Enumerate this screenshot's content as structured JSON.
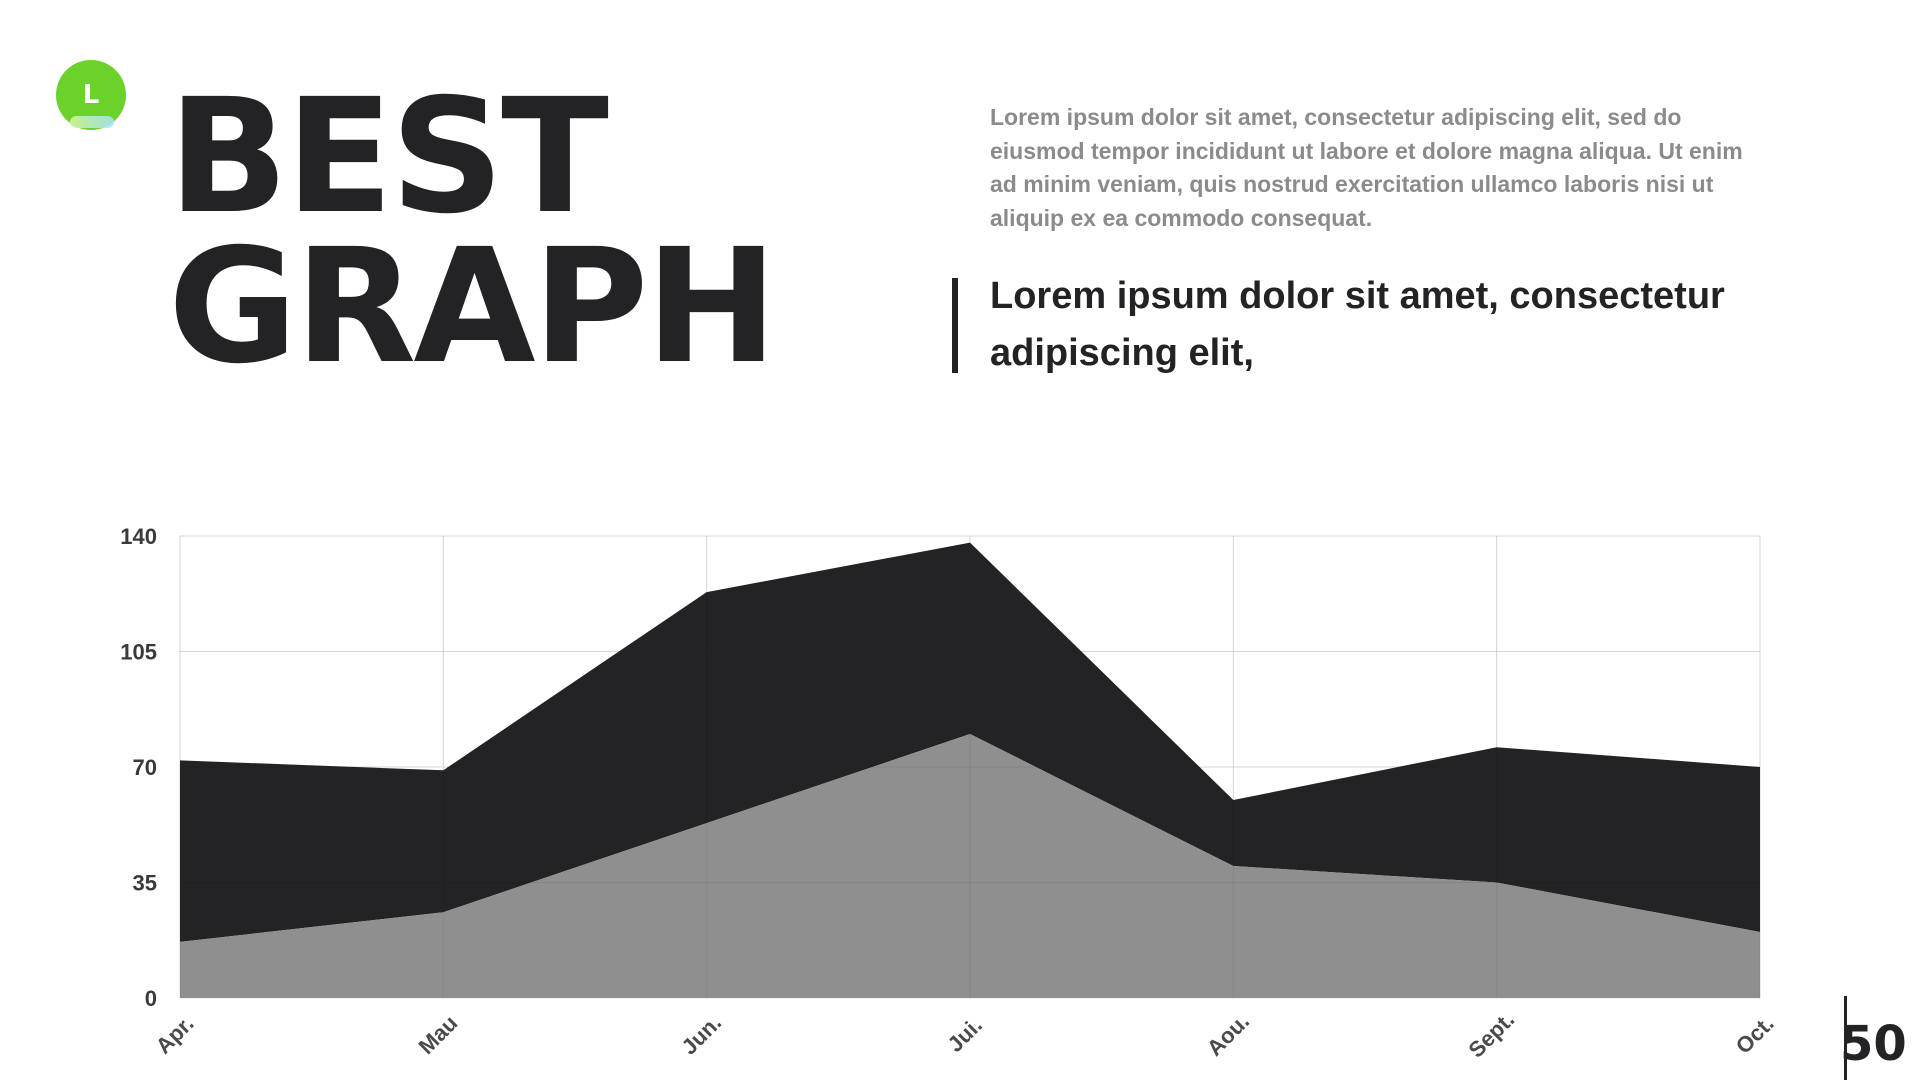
{
  "logo": {
    "letter": "L",
    "color": "#6bd12b"
  },
  "title": {
    "line1": "BEST",
    "line2": "GRAPH"
  },
  "description": "Lorem ipsum dolor sit amet, consectetur adipiscing elit, sed do eiusmod tempor incididunt ut labore et dolore magna aliqua. Ut enim ad minim veniam, quis nostrud exercitation ullamco laboris nisi ut aliquip ex ea commodo consequat.",
  "quote": "Lorem ipsum dolor sit amet, consectetur adipiscing elit,",
  "page_number": "50",
  "chart_data": {
    "type": "area",
    "stacked": true,
    "categories": [
      "Apr.",
      "Mau",
      "Jun.",
      "Jui.",
      "Aou.",
      "Sept.",
      "Oct."
    ],
    "series": [
      {
        "values": [
          17,
          26,
          53,
          80,
          40,
          35,
          20
        ],
        "color": "#8f8f8f"
      },
      {
        "values": [
          55,
          43,
          70,
          58,
          20,
          41,
          50
        ],
        "color": "#232326"
      }
    ],
    "yticks": [
      "0",
      "35",
      "70",
      "105",
      "140"
    ],
    "ylim": [
      0,
      140
    ],
    "grid": true,
    "title": "",
    "xlabel": "",
    "ylabel": ""
  }
}
